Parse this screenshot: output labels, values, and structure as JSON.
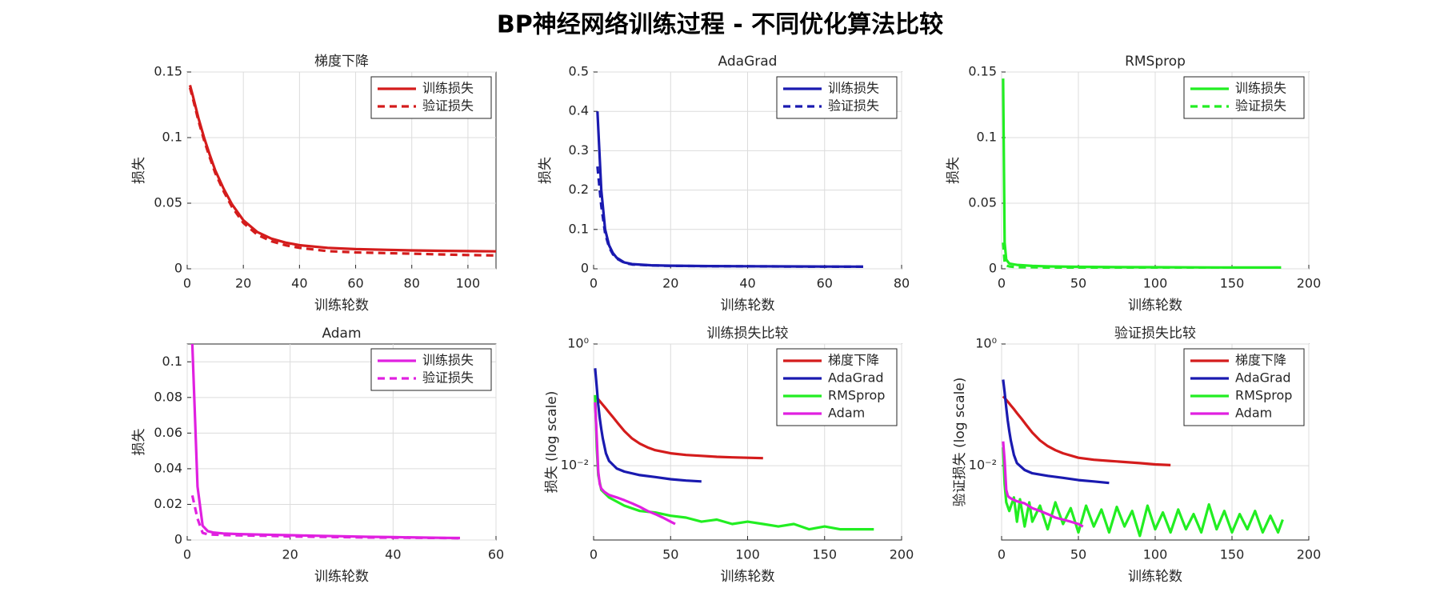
{
  "title": "BP神经网络训练过程 - 不同优化算法比较",
  "chart_data": [
    {
      "type": "line",
      "title": "梯度下降",
      "xlabel": "训练轮数",
      "ylabel": "损失",
      "xlim": [
        0,
        110
      ],
      "xticks": [
        0,
        20,
        40,
        60,
        80,
        100
      ],
      "ylim": [
        0,
        0.15
      ],
      "yticks": [
        0,
        0.05,
        0.1,
        0.15
      ],
      "grid": true,
      "legend": "northeast",
      "series": [
        {
          "name": "训练损失",
          "color": "#d41c1c",
          "dash": false,
          "x": [
            1,
            2,
            4,
            6,
            8,
            10,
            13,
            16,
            20,
            25,
            30,
            35,
            40,
            50,
            60,
            70,
            80,
            90,
            100,
            110
          ],
          "values": [
            0.14,
            0.132,
            0.115,
            0.1,
            0.087,
            0.075,
            0.061,
            0.049,
            0.037,
            0.028,
            0.023,
            0.02,
            0.018,
            0.016,
            0.015,
            0.0145,
            0.014,
            0.0137,
            0.0135,
            0.0133
          ]
        },
        {
          "name": "验证损失",
          "color": "#d41c1c",
          "dash": true,
          "x": [
            1,
            2,
            4,
            6,
            8,
            10,
            13,
            16,
            20,
            25,
            30,
            35,
            40,
            50,
            60,
            70,
            80,
            90,
            100,
            110
          ],
          "values": [
            0.138,
            0.13,
            0.113,
            0.098,
            0.085,
            0.073,
            0.059,
            0.047,
            0.035,
            0.026,
            0.021,
            0.018,
            0.016,
            0.0135,
            0.0125,
            0.012,
            0.0115,
            0.011,
            0.0105,
            0.0102
          ]
        }
      ]
    },
    {
      "type": "line",
      "title": "AdaGrad",
      "xlabel": "训练轮数",
      "ylabel": "损失",
      "xlim": [
        0,
        80
      ],
      "xticks": [
        0,
        20,
        40,
        60,
        80
      ],
      "ylim": [
        0,
        0.5
      ],
      "yticks": [
        0,
        0.1,
        0.2,
        0.3,
        0.4,
        0.5
      ],
      "grid": true,
      "legend": "northeast",
      "series": [
        {
          "name": "训练损失",
          "color": "#1a1ab0",
          "dash": false,
          "x": [
            1,
            2,
            3,
            4,
            5,
            6,
            8,
            10,
            15,
            20,
            30,
            40,
            50,
            60,
            70
          ],
          "values": [
            0.4,
            0.2,
            0.1,
            0.06,
            0.04,
            0.028,
            0.016,
            0.012,
            0.009,
            0.008,
            0.007,
            0.0065,
            0.006,
            0.0057,
            0.0055
          ]
        },
        {
          "name": "验证损失",
          "color": "#1a1ab0",
          "dash": true,
          "x": [
            1,
            2,
            3,
            4,
            5,
            6,
            8,
            10,
            15,
            20,
            30,
            40,
            50,
            60,
            70
          ],
          "values": [
            0.26,
            0.16,
            0.09,
            0.055,
            0.037,
            0.026,
            0.015,
            0.011,
            0.0085,
            0.0075,
            0.0068,
            0.0063,
            0.0058,
            0.0055,
            0.0052
          ]
        }
      ]
    },
    {
      "type": "line",
      "title": "RMSprop",
      "xlabel": "训练轮数",
      "ylabel": "损失",
      "xlim": [
        0,
        200
      ],
      "xticks": [
        0,
        50,
        100,
        150,
        200
      ],
      "ylim": [
        0,
        0.15
      ],
      "yticks": [
        0,
        0.05,
        0.1,
        0.15
      ],
      "grid": true,
      "legend": "northeast",
      "series": [
        {
          "name": "训练损失",
          "color": "#22ee22",
          "dash": false,
          "x": [
            1,
            2,
            3,
            5,
            10,
            20,
            30,
            50,
            75,
            100,
            125,
            150,
            182
          ],
          "values": [
            0.145,
            0.02,
            0.007,
            0.004,
            0.003,
            0.0022,
            0.0018,
            0.0015,
            0.0013,
            0.0012,
            0.0011,
            0.001,
            0.001
          ]
        },
        {
          "name": "验证损失",
          "color": "#22ee22",
          "dash": true,
          "x": [
            1,
            2,
            3,
            5,
            10,
            20,
            30,
            50,
            75,
            100,
            125,
            150,
            182
          ],
          "values": [
            0.02,
            0.005,
            0.0025,
            0.0018,
            0.0012,
            0.0012,
            0.0009,
            0.0008,
            0.001,
            0.0009,
            0.0008,
            0.0008,
            0.0009
          ]
        }
      ]
    },
    {
      "type": "line",
      "title": "Adam",
      "xlabel": "训练轮数",
      "ylabel": "损失",
      "xlim": [
        0,
        60
      ],
      "xticks": [
        0,
        20,
        40,
        60
      ],
      "ylim": [
        0,
        0.11
      ],
      "yticks": [
        0,
        0.02,
        0.04,
        0.06,
        0.08,
        0.1
      ],
      "grid": true,
      "legend": "northeast",
      "series": [
        {
          "name": "训练损失",
          "color": "#e020e0",
          "dash": false,
          "x": [
            1,
            2,
            3,
            4,
            5,
            7,
            10,
            15,
            20,
            25,
            30,
            35,
            40,
            45,
            50,
            53
          ],
          "values": [
            0.11,
            0.03,
            0.008,
            0.005,
            0.0042,
            0.0037,
            0.0033,
            0.003,
            0.0027,
            0.0024,
            0.0021,
            0.0018,
            0.0016,
            0.0014,
            0.0012,
            0.0011
          ]
        },
        {
          "name": "验证损失",
          "color": "#e020e0",
          "dash": true,
          "x": [
            1,
            2,
            3,
            4,
            5,
            7,
            10,
            15,
            20,
            25,
            30,
            35,
            40,
            45,
            50,
            53
          ],
          "values": [
            0.025,
            0.012,
            0.004,
            0.0032,
            0.003,
            0.0028,
            0.0026,
            0.0024,
            0.002,
            0.0018,
            0.0016,
            0.0014,
            0.0013,
            0.0012,
            0.0011,
            0.001
          ]
        }
      ]
    },
    {
      "type": "line",
      "title": "训练损失比较",
      "xlabel": "训练轮数",
      "ylabel": "损失 (log scale)",
      "log_y": true,
      "xlim": [
        0,
        200
      ],
      "xticks": [
        0,
        50,
        100,
        150,
        200
      ],
      "ylim": [
        0.0006,
        1
      ],
      "yticks": [
        {
          "value": 0.01,
          "label": "10⁻²"
        },
        {
          "value": 1,
          "label": "10⁰"
        }
      ],
      "grid": true,
      "legend": "northeast",
      "series": [
        {
          "name": "梯度下降",
          "color": "#d41c1c",
          "dash": false,
          "x": [
            1,
            2,
            4,
            6,
            8,
            10,
            13,
            16,
            20,
            25,
            30,
            35,
            40,
            50,
            60,
            70,
            80,
            90,
            100,
            110
          ],
          "values": [
            0.14,
            0.132,
            0.115,
            0.1,
            0.087,
            0.075,
            0.061,
            0.049,
            0.037,
            0.028,
            0.023,
            0.02,
            0.018,
            0.016,
            0.015,
            0.0145,
            0.014,
            0.0137,
            0.0135,
            0.0133
          ]
        },
        {
          "name": "AdaGrad",
          "color": "#1a1ab0",
          "dash": false,
          "x": [
            1,
            2,
            3,
            4,
            5,
            6,
            8,
            10,
            15,
            20,
            30,
            40,
            50,
            60,
            70
          ],
          "values": [
            0.4,
            0.2,
            0.1,
            0.06,
            0.04,
            0.028,
            0.016,
            0.012,
            0.009,
            0.008,
            0.007,
            0.0065,
            0.006,
            0.0057,
            0.0055
          ]
        },
        {
          "name": "RMSprop",
          "color": "#22ee22",
          "dash": false,
          "x": [
            1,
            2,
            3,
            5,
            10,
            20,
            30,
            40,
            50,
            60,
            70,
            80,
            90,
            100,
            110,
            120,
            130,
            140,
            150,
            160,
            170,
            182
          ],
          "values": [
            0.145,
            0.02,
            0.007,
            0.004,
            0.003,
            0.0022,
            0.0018,
            0.0017,
            0.0015,
            0.0014,
            0.0012,
            0.0013,
            0.0011,
            0.0012,
            0.0011,
            0.001,
            0.0011,
            0.0009,
            0.001,
            0.0009,
            0.0009,
            0.0009
          ]
        },
        {
          "name": "Adam",
          "color": "#e020e0",
          "dash": false,
          "x": [
            1,
            2,
            3,
            4,
            5,
            7,
            10,
            15,
            20,
            25,
            30,
            35,
            40,
            45,
            50,
            53
          ],
          "values": [
            0.11,
            0.03,
            0.008,
            0.005,
            0.0042,
            0.0037,
            0.0033,
            0.003,
            0.0027,
            0.0024,
            0.0021,
            0.0018,
            0.0016,
            0.0014,
            0.0012,
            0.0011
          ]
        }
      ]
    },
    {
      "type": "line",
      "title": "验证损失比较",
      "xlabel": "训练轮数",
      "ylabel": "验证损失 (log scale)",
      "log_y": true,
      "xlim": [
        0,
        200
      ],
      "xticks": [
        0,
        50,
        100,
        150,
        200
      ],
      "ylim": [
        0.0006,
        1
      ],
      "yticks": [
        {
          "value": 0.01,
          "label": "10⁻²"
        },
        {
          "value": 1,
          "label": "10⁰"
        }
      ],
      "grid": true,
      "legend": "northeast",
      "series": [
        {
          "name": "梯度下降",
          "color": "#d41c1c",
          "dash": false,
          "x": [
            1,
            2,
            4,
            6,
            8,
            10,
            13,
            16,
            20,
            25,
            30,
            35,
            40,
            50,
            60,
            70,
            80,
            90,
            100,
            110
          ],
          "values": [
            0.138,
            0.13,
            0.113,
            0.098,
            0.085,
            0.073,
            0.059,
            0.047,
            0.035,
            0.026,
            0.021,
            0.018,
            0.016,
            0.0135,
            0.0125,
            0.012,
            0.0115,
            0.011,
            0.0105,
            0.0102
          ]
        },
        {
          "name": "AdaGrad",
          "color": "#1a1ab0",
          "dash": false,
          "x": [
            1,
            2,
            3,
            4,
            5,
            6,
            8,
            10,
            15,
            20,
            30,
            40,
            50,
            60,
            70
          ],
          "values": [
            0.26,
            0.16,
            0.09,
            0.055,
            0.037,
            0.026,
            0.015,
            0.011,
            0.0085,
            0.0075,
            0.0068,
            0.0063,
            0.0058,
            0.0055,
            0.0052
          ]
        },
        {
          "name": "RMSprop",
          "color": "#22ee22",
          "dash": false,
          "x": [
            1,
            2,
            3,
            5,
            8,
            10,
            12,
            15,
            18,
            20,
            25,
            30,
            35,
            40,
            45,
            50,
            55,
            60,
            65,
            70,
            75,
            80,
            85,
            90,
            95,
            100,
            105,
            110,
            115,
            120,
            125,
            130,
            135,
            140,
            145,
            150,
            155,
            160,
            165,
            170,
            175,
            180,
            183
          ],
          "values": [
            0.02,
            0.005,
            0.0025,
            0.0018,
            0.003,
            0.0012,
            0.0028,
            0.001,
            0.0025,
            0.0012,
            0.0022,
            0.0009,
            0.0025,
            0.0011,
            0.002,
            0.0008,
            0.0022,
            0.001,
            0.0019,
            0.0008,
            0.0021,
            0.001,
            0.0018,
            0.0007,
            0.0022,
            0.0009,
            0.0017,
            0.0008,
            0.0019,
            0.0009,
            0.0016,
            0.0008,
            0.0023,
            0.0009,
            0.0018,
            0.0008,
            0.0016,
            0.0009,
            0.0018,
            0.0008,
            0.0015,
            0.0008,
            0.0013
          ]
        },
        {
          "name": "Adam",
          "color": "#e020e0",
          "dash": false,
          "x": [
            1,
            2,
            3,
            4,
            5,
            7,
            10,
            15,
            20,
            25,
            30,
            35,
            40,
            45,
            50,
            53
          ],
          "values": [
            0.025,
            0.012,
            0.004,
            0.0032,
            0.003,
            0.0028,
            0.0026,
            0.0024,
            0.002,
            0.0018,
            0.0016,
            0.0014,
            0.0013,
            0.0012,
            0.0011,
            0.001
          ]
        }
      ]
    }
  ]
}
